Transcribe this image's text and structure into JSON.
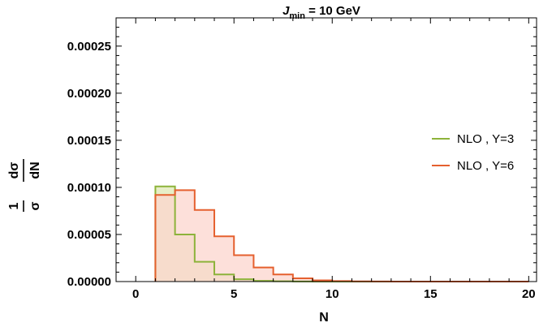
{
  "chart_data": {
    "type": "step-histogram",
    "title_main": "J",
    "title_sub": "min",
    "title_rest": " = 10 GeV",
    "xlabel": "N",
    "ylabel_top_num": "1",
    "ylabel_top_den": "σ",
    "ylabel_bot_num": "dσ",
    "ylabel_bot_den": "dN",
    "xlim": [
      -1,
      20.4
    ],
    "ylim": [
      0,
      0.00028
    ],
    "x_ticks": [
      0,
      5,
      10,
      15,
      20
    ],
    "x_tick_labels": [
      "0",
      "5",
      "10",
      "15",
      "20"
    ],
    "y_ticks": [
      0,
      5e-05,
      0.0001,
      0.00015,
      0.0002,
      0.00025
    ],
    "y_tick_labels": [
      "0.00000",
      "0.00005",
      "0.00010",
      "0.00015",
      "0.00020",
      "0.00025"
    ],
    "bin_edges": [
      1,
      2,
      3,
      4,
      5,
      6,
      7,
      8,
      9,
      10,
      11,
      12,
      13,
      14,
      15,
      16,
      17,
      18,
      19,
      20
    ],
    "legend_position": "right",
    "series": [
      {
        "name": "NLO , Y=3",
        "color": "#8db33a",
        "fill": "#dfe8b4",
        "values": [
          0.000101,
          5e-05,
          2.1e-05,
          7.5e-06,
          2.5e-06,
          8e-07,
          3e-07,
          1e-07,
          0.0,
          0.0,
          0.0,
          0.0,
          0.0,
          0.0,
          0.0,
          0.0,
          0.0,
          0.0,
          0.0
        ]
      },
      {
        "name": "NLO , Y=6",
        "color": "#e5602f",
        "fill": "#fcd5cd",
        "values": [
          9.2e-05,
          9.7e-05,
          7.6e-05,
          4.8e-05,
          2.8e-05,
          1.5e-05,
          7.5e-06,
          3.5e-06,
          1.3e-06,
          5e-07,
          2e-07,
          1e-07,
          0.0,
          0.0,
          0.0,
          0.0,
          0.0,
          0.0,
          0.0
        ]
      }
    ]
  }
}
